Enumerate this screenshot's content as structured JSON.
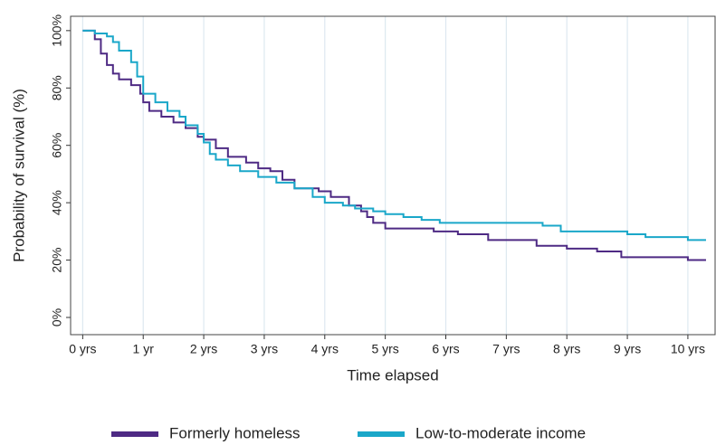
{
  "chart_data": {
    "type": "line",
    "step": true,
    "x_label": "Time elapsed",
    "y_label": "Probability of survival (%)",
    "xlim": [
      -0.2,
      10.45
    ],
    "ylim": [
      -6,
      105
    ],
    "xticks": [
      {
        "value": 0,
        "label": "0 yrs"
      },
      {
        "value": 1,
        "label": "1 yr"
      },
      {
        "value": 2,
        "label": "2 yrs"
      },
      {
        "value": 3,
        "label": "3 yrs"
      },
      {
        "value": 4,
        "label": "4 yrs"
      },
      {
        "value": 5,
        "label": "5 yrs"
      },
      {
        "value": 6,
        "label": "6 yrs"
      },
      {
        "value": 7,
        "label": "7 yrs"
      },
      {
        "value": 8,
        "label": "8 yrs"
      },
      {
        "value": 9,
        "label": "9 yrs"
      },
      {
        "value": 10,
        "label": "10 yrs"
      }
    ],
    "yticks": [
      {
        "value": 0,
        "label": "0%"
      },
      {
        "value": 20,
        "label": "20%"
      },
      {
        "value": 40,
        "label": "40%"
      },
      {
        "value": 60,
        "label": "60%"
      },
      {
        "value": 80,
        "label": "80%"
      },
      {
        "value": 100,
        "label": "100%"
      }
    ],
    "grid": "x",
    "legend": "bottom",
    "series": [
      {
        "name": "Formerly homeless",
        "color": "#4e2a84",
        "x": [
          0,
          0.1,
          0.2,
          0.3,
          0.4,
          0.5,
          0.6,
          0.8,
          0.95,
          1.0,
          1.1,
          1.3,
          1.5,
          1.7,
          1.9,
          2.0,
          2.2,
          2.4,
          2.7,
          2.9,
          3.1,
          3.3,
          3.5,
          3.9,
          4.1,
          4.4,
          4.6,
          4.7,
          4.8,
          5.0,
          5.8,
          6.2,
          6.7,
          7.5,
          8.0,
          8.5,
          8.9,
          10.0,
          10.3
        ],
        "values": [
          100,
          100,
          97,
          92,
          88,
          85,
          83,
          81,
          78,
          75,
          72,
          70,
          68,
          66,
          63,
          62,
          59,
          56,
          54,
          52,
          51,
          48,
          45,
          44,
          42,
          39,
          37,
          35,
          33,
          31,
          30,
          29,
          27,
          25,
          24,
          23,
          21,
          20,
          20
        ]
      },
      {
        "name": "Low-to-moderate income",
        "color": "#1aa7c9",
        "x": [
          0,
          0.2,
          0.4,
          0.5,
          0.6,
          0.8,
          0.9,
          1.0,
          1.2,
          1.4,
          1.6,
          1.7,
          1.9,
          2.0,
          2.1,
          2.2,
          2.4,
          2.6,
          2.9,
          3.2,
          3.5,
          3.8,
          4.0,
          4.3,
          4.5,
          4.8,
          5.0,
          5.3,
          5.6,
          5.9,
          7.6,
          7.9,
          9.0,
          9.3,
          10.0,
          10.3
        ],
        "values": [
          100,
          99,
          98,
          96,
          93,
          89,
          84,
          78,
          75,
          72,
          70,
          67,
          64,
          61,
          57,
          55,
          53,
          51,
          49,
          47,
          45,
          42,
          40,
          39,
          38,
          37,
          36,
          35,
          34,
          33,
          32,
          30,
          29,
          28,
          27,
          27
        ]
      }
    ]
  }
}
